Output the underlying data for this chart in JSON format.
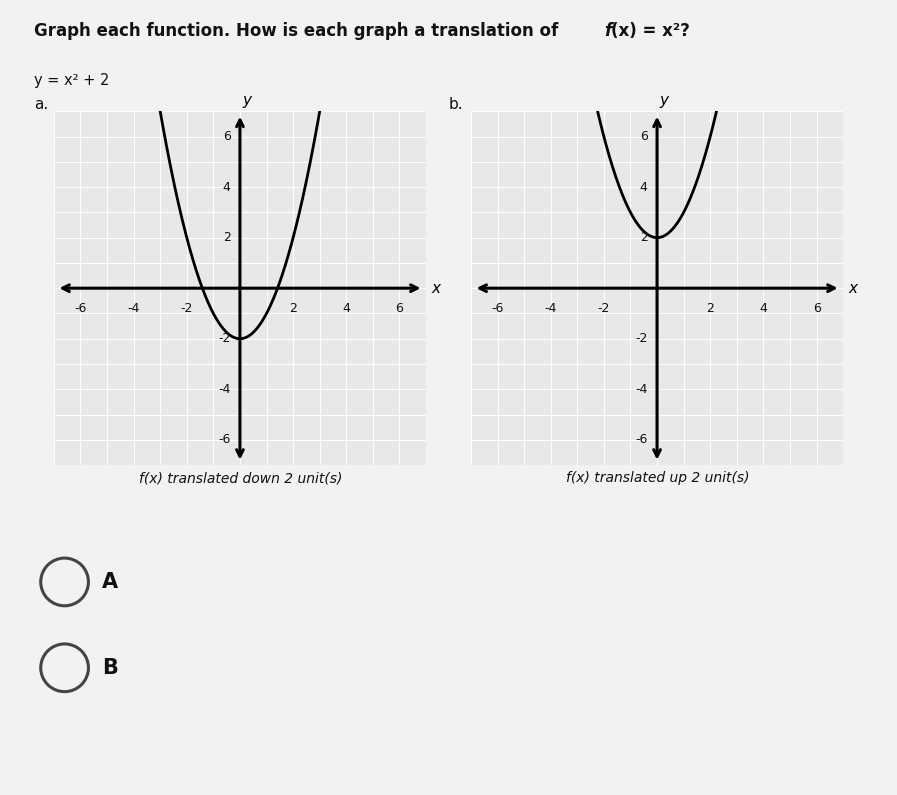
{
  "title_plain": "Graph each function. How is each graph a translation of ",
  "title_fx": "f(x)",
  "title_end": " = x²?",
  "equation": "y = x² + 2",
  "label_a": "a.",
  "label_b": "b.",
  "caption_a": "f(x) translated down 2 unit(s)",
  "caption_b": "f(x) translated up 2 unit(s)",
  "choice_A": "A",
  "choice_B": "B",
  "xlim": [
    -7,
    7
  ],
  "ylim": [
    -7,
    7
  ],
  "xticks": [
    -6,
    -4,
    -2,
    2,
    4,
    6
  ],
  "yticks": [
    -6,
    -4,
    -2,
    2,
    4,
    6
  ],
  "curve_a_shift": -2,
  "curve_b_shift": 2,
  "bg_color": "#f2f2f2",
  "plot_bg": "#e8e8e8",
  "grid_color": "#ffffff",
  "curve_color": "#000000",
  "axis_color": "#000000",
  "font_size_title": 12,
  "font_size_eq": 10.5,
  "font_size_label": 11,
  "font_size_ticks": 9,
  "font_size_caption": 10,
  "font_size_choice": 15
}
